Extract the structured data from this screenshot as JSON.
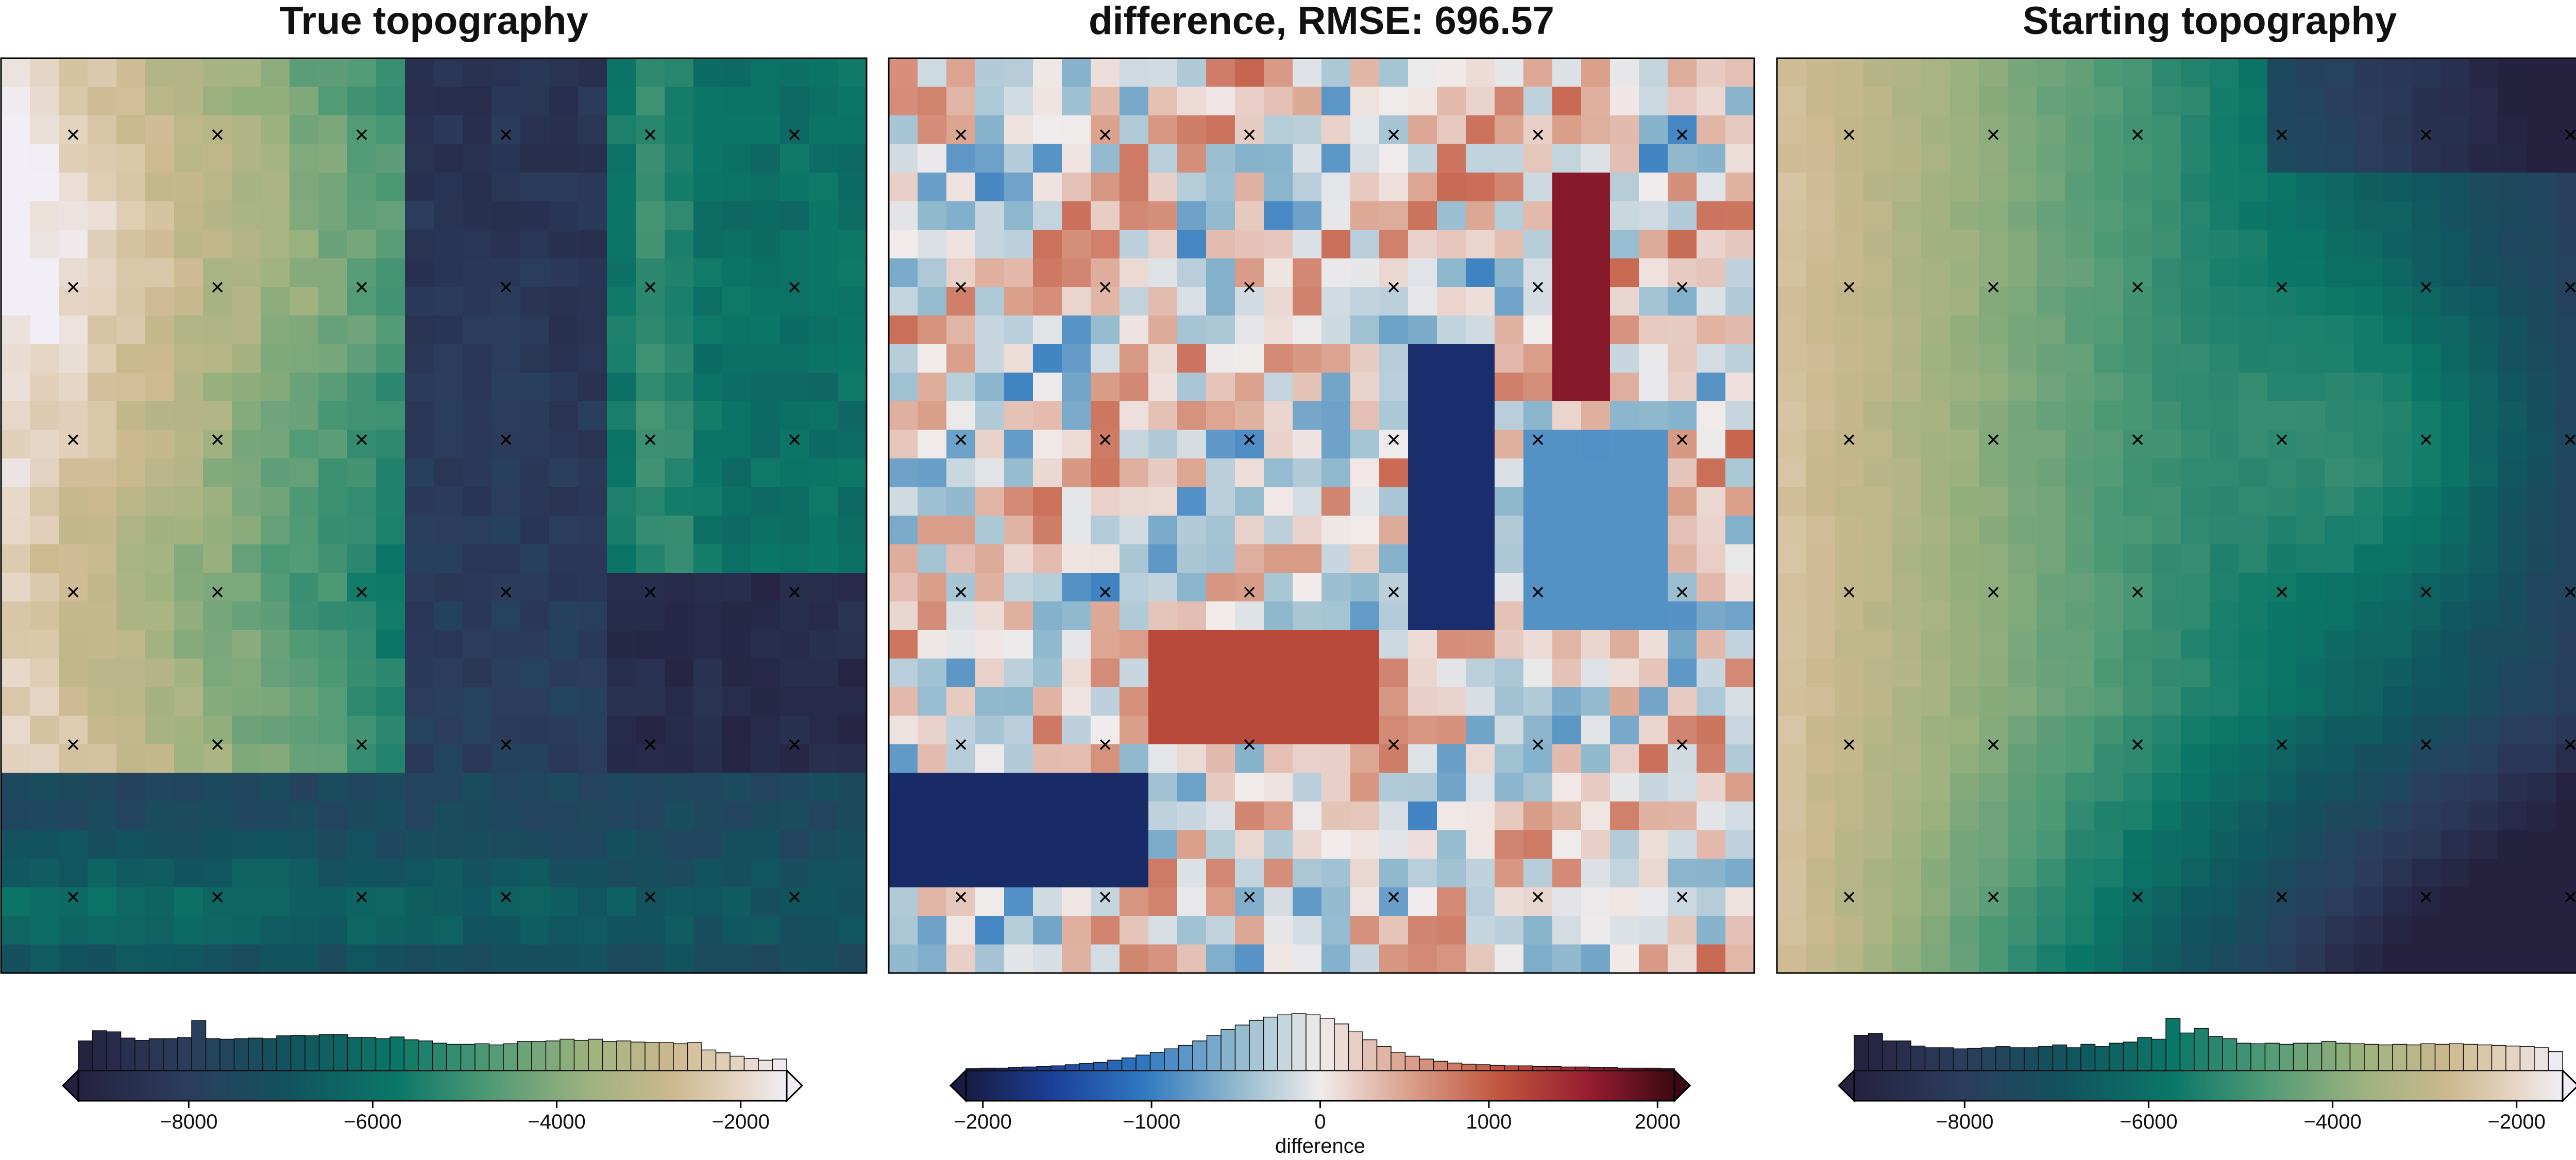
{
  "panels": [
    {
      "title": "True topography",
      "colormap": "topo",
      "marker": "×",
      "colorbar": {
        "range": [
          -9200,
          -1500
        ],
        "extend": "both",
        "ticks": [
          -8000,
          -6000,
          -4000,
          -2000
        ],
        "tick_labels": [
          "−8000",
          "−6000",
          "−4000",
          "−2000"
        ],
        "label": ""
      }
    },
    {
      "title": "difference, RMSE: 696.57",
      "colormap": "balance",
      "marker": "×",
      "colorbar": {
        "range": [
          -2100,
          2100
        ],
        "extend": "both",
        "ticks": [
          -2000,
          -1000,
          0,
          1000,
          2000
        ],
        "tick_labels": [
          "−2000",
          "−1000",
          "0",
          "1000",
          "2000"
        ],
        "label": "difference"
      }
    },
    {
      "title": "Starting topography",
      "colormap": "topo",
      "marker": "×",
      "colorbar": {
        "range": [
          -9200,
          -1500
        ],
        "extend": "both",
        "ticks": [
          -8000,
          -6000,
          -4000,
          -2000
        ],
        "tick_labels": [
          "−8000",
          "−6000",
          "−4000",
          "−2000"
        ],
        "label": ""
      }
    }
  ],
  "chart_data": [
    {
      "type": "heatmap",
      "title": "True topography",
      "colormap": "cmocean topo",
      "value_range": [
        -9200,
        -1500
      ],
      "grid": {
        "nx": 30,
        "ny": 32
      },
      "constraint_points": {
        "cols": 6,
        "rows": 6
      },
      "histogram": {
        "bins": 50,
        "heights": [
          0.52,
          0.7,
          0.68,
          0.57,
          0.53,
          0.56,
          0.56,
          0.58,
          0.88,
          0.56,
          0.55,
          0.56,
          0.57,
          0.56,
          0.61,
          0.62,
          0.61,
          0.63,
          0.63,
          0.58,
          0.58,
          0.56,
          0.59,
          0.54,
          0.52,
          0.48,
          0.46,
          0.46,
          0.47,
          0.45,
          0.47,
          0.51,
          0.51,
          0.52,
          0.55,
          0.53,
          0.55,
          0.51,
          0.52,
          0.5,
          0.49,
          0.49,
          0.47,
          0.49,
          0.36,
          0.31,
          0.25,
          0.21,
          0.18,
          0.2
        ]
      }
    },
    {
      "type": "heatmap",
      "title": "difference, RMSE: 696.57",
      "colormap": "cmocean balance",
      "value_range": [
        -2100,
        2100
      ],
      "rmse": 696.57,
      "grid": {
        "nx": 30,
        "ny": 32
      },
      "constraint_points": {
        "cols": 6,
        "rows": 6
      },
      "histogram": {
        "bins": 50,
        "heights": [
          0.03,
          0.04,
          0.04,
          0.05,
          0.06,
          0.07,
          0.08,
          0.1,
          0.12,
          0.14,
          0.18,
          0.22,
          0.27,
          0.32,
          0.38,
          0.44,
          0.52,
          0.62,
          0.72,
          0.8,
          0.88,
          0.94,
          0.98,
          1.0,
          0.98,
          0.92,
          0.82,
          0.68,
          0.54,
          0.42,
          0.32,
          0.25,
          0.2,
          0.16,
          0.13,
          0.11,
          0.1,
          0.09,
          0.08,
          0.08,
          0.07,
          0.07,
          0.06,
          0.06,
          0.05,
          0.05,
          0.04,
          0.04,
          0.04,
          0.03
        ]
      }
    },
    {
      "type": "heatmap",
      "title": "Starting topography",
      "colormap": "cmocean topo",
      "value_range": [
        -9200,
        -1500
      ],
      "grid": {
        "nx": 30,
        "ny": 32
      },
      "constraint_points": {
        "cols": 6,
        "rows": 6
      },
      "histogram": {
        "bins": 50,
        "heights": [
          0.62,
          0.65,
          0.52,
          0.52,
          0.43,
          0.4,
          0.4,
          0.38,
          0.39,
          0.4,
          0.42,
          0.4,
          0.4,
          0.42,
          0.45,
          0.4,
          0.46,
          0.42,
          0.48,
          0.5,
          0.58,
          0.55,
          0.92,
          0.66,
          0.74,
          0.6,
          0.56,
          0.48,
          0.47,
          0.48,
          0.46,
          0.48,
          0.48,
          0.51,
          0.48,
          0.47,
          0.46,
          0.45,
          0.46,
          0.45,
          0.47,
          0.46,
          0.47,
          0.46,
          0.45,
          0.44,
          0.43,
          0.42,
          0.4,
          0.33
        ]
      }
    }
  ]
}
